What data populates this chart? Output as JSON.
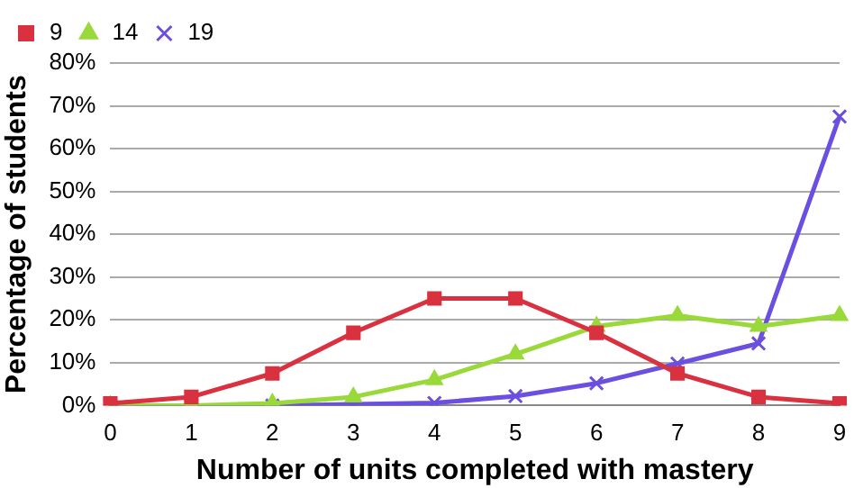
{
  "chart_data": {
    "type": "line",
    "xlabel": "Number of units completed with mastery",
    "ylabel": "Percentage of students",
    "categories": [
      "0",
      "1",
      "2",
      "3",
      "4",
      "5",
      "6",
      "7",
      "8",
      "9"
    ],
    "series": [
      {
        "name": "9",
        "color": "#d9313f",
        "marker": "square",
        "values": [
          0.5,
          2,
          7.5,
          17,
          25,
          25,
          17,
          7.5,
          2,
          0.5
        ]
      },
      {
        "name": "14",
        "color": "#99d93a",
        "marker": "triangle",
        "values": [
          0,
          0,
          0.5,
          2,
          6,
          12,
          18.5,
          21,
          18.5,
          21
        ]
      },
      {
        "name": "19",
        "color": "#6a4fe0",
        "marker": "cross",
        "values": [
          0,
          0,
          0,
          0.3,
          0.6,
          2.2,
          5.2,
          9.8,
          14.5,
          67.5
        ]
      }
    ],
    "ylim": [
      0,
      80
    ],
    "yticks": [
      {
        "value": 0,
        "label": "0%"
      },
      {
        "value": 10,
        "label": "10%"
      },
      {
        "value": 20,
        "label": "20%"
      },
      {
        "value": 30,
        "label": "30%"
      },
      {
        "value": 40,
        "label": "40%"
      },
      {
        "value": 50,
        "label": "50%"
      },
      {
        "value": 60,
        "label": "60%"
      },
      {
        "value": 70,
        "label": "70%"
      },
      {
        "value": 80,
        "label": "80%"
      }
    ],
    "grid": "y",
    "legend": "top left",
    "line_style": "solid"
  }
}
